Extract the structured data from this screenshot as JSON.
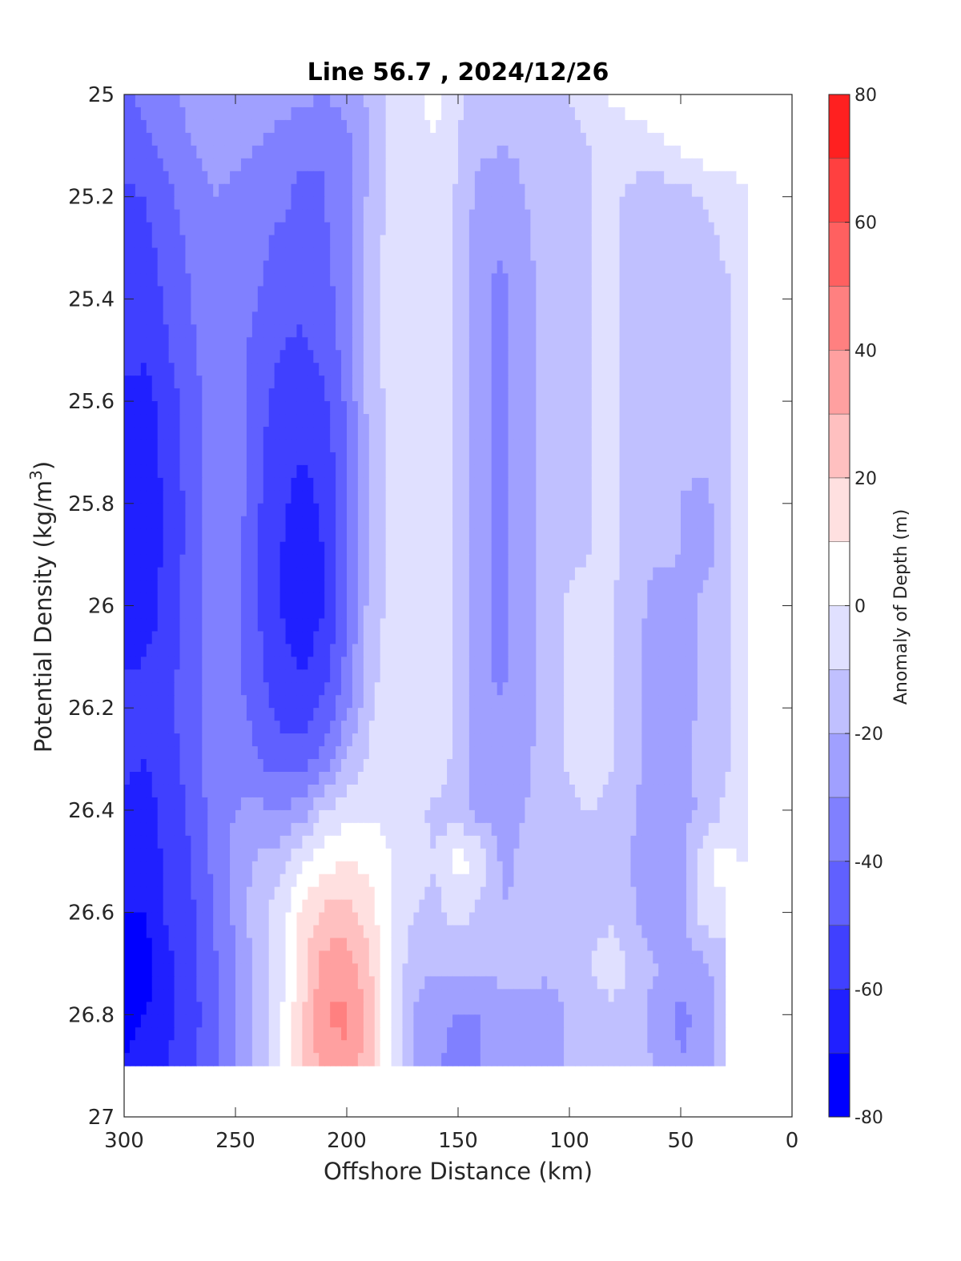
{
  "chart_data": {
    "type": "heatmap",
    "title": "Line 56.7 , 2024/12/26",
    "xlabel": "Offshore Distance (km)",
    "ylabel": "Potential Density (kg/m^3)",
    "ylabel_parts": {
      "main": "Potential Density (kg/m",
      "sup": "3",
      "end": ")"
    },
    "colorbar_label": "Anomaly of Depth (m)",
    "xlim": [
      300,
      0
    ],
    "ylim": [
      25,
      27
    ],
    "x_reversed": true,
    "y_reversed": true,
    "x_ticks": [
      "300",
      "250",
      "200",
      "150",
      "100",
      "50",
      "0"
    ],
    "y_ticks": [
      "25",
      "25.2",
      "25.4",
      "25.6",
      "25.8",
      "26",
      "26.2",
      "26.4",
      "26.6",
      "26.8",
      "27"
    ],
    "clim": [
      -80,
      80
    ],
    "colorbar_ticks": [
      "80",
      "60",
      "40",
      "20",
      "0",
      "-20",
      "-40",
      "-60",
      "-80"
    ],
    "contour_levels": [
      -80,
      -70,
      -60,
      -50,
      -40,
      -30,
      -20,
      -10,
      0,
      10,
      20,
      30,
      40,
      50,
      60,
      70,
      80
    ],
    "colors": [
      "#0000ff",
      "#2020ff",
      "#4040ff",
      "#6060ff",
      "#8080ff",
      "#a0a0ff",
      "#c0c0ff",
      "#e0e0ff",
      "#ffffff",
      "#ffe0e0",
      "#ffc0c0",
      "#ffa0a0",
      "#ff8080",
      "#ff6060",
      "#ff4040",
      "#ff2020",
      "#ff0000"
    ],
    "x": [
      300,
      290,
      280,
      270,
      260,
      250,
      240,
      230,
      220,
      210,
      200,
      190,
      180,
      170,
      160,
      150,
      140,
      130,
      120,
      110,
      100,
      90,
      80,
      70,
      60,
      50,
      40,
      30,
      20,
      10
    ],
    "y": [
      25.0,
      25.1,
      25.2,
      25.3,
      25.4,
      25.5,
      25.6,
      25.7,
      25.8,
      25.9,
      26.0,
      26.1,
      26.2,
      26.3,
      26.4,
      26.5,
      26.6,
      26.7,
      26.8,
      26.9
    ],
    "z": [
      [
        -42,
        -38,
        -32,
        -28,
        -24,
        -21,
        -20,
        -24,
        -28,
        -30,
        -26,
        -18,
        -8,
        -2,
        2,
        -8,
        -14,
        -16,
        -14,
        -12,
        -10,
        -6,
        2,
        4,
        6,
        6,
        4,
        10,
        6,
        null
      ],
      [
        -44,
        -42,
        -35,
        -30,
        -26,
        -28,
        -30,
        -35,
        -38,
        -40,
        -34,
        -20,
        -8,
        -2,
        0,
        -10,
        -18,
        -20,
        -18,
        -14,
        -12,
        -10,
        -6,
        -4,
        -2,
        2,
        6,
        4,
        2,
        null
      ],
      [
        -52,
        -50,
        -42,
        -35,
        -30,
        -32,
        -35,
        -38,
        -42,
        -40,
        -34,
        -18,
        -6,
        -2,
        0,
        -12,
        -24,
        -26,
        -20,
        -16,
        -12,
        -10,
        -8,
        -14,
        -16,
        -14,
        -10,
        -4,
        0,
        null
      ],
      [
        -55,
        -52,
        -46,
        -38,
        -32,
        -34,
        -38,
        -42,
        -45,
        -42,
        -34,
        -16,
        -6,
        -2,
        0,
        -14,
        -28,
        -30,
        -22,
        -16,
        -12,
        -10,
        -8,
        -16,
        -18,
        -18,
        -16,
        -8,
        -2,
        null
      ],
      [
        -56,
        -56,
        -48,
        -40,
        -33,
        -34,
        -40,
        -44,
        -48,
        -44,
        -34,
        -16,
        -6,
        -2,
        0,
        -14,
        -28,
        -32,
        -24,
        -16,
        -12,
        -10,
        -8,
        -16,
        -18,
        -18,
        -16,
        -14,
        -2,
        null
      ],
      [
        -58,
        -58,
        -50,
        -42,
        -34,
        -35,
        -44,
        -50,
        -52,
        -48,
        -35,
        -16,
        -6,
        -2,
        0,
        -14,
        -28,
        -32,
        -24,
        -16,
        -12,
        -10,
        -8,
        -16,
        -18,
        -18,
        -16,
        -14,
        -2,
        null
      ],
      [
        -62,
        -64,
        -54,
        -45,
        -34,
        -30,
        -46,
        -54,
        -56,
        -52,
        -38,
        -17,
        -6,
        -2,
        0,
        -14,
        -28,
        -32,
        -24,
        -16,
        -12,
        -10,
        -8,
        -16,
        -18,
        -18,
        -18,
        -14,
        -2,
        null
      ],
      [
        -65,
        -66,
        -56,
        -46,
        -36,
        -31,
        -48,
        -56,
        -60,
        -56,
        -40,
        -18,
        -6,
        -2,
        0,
        -14,
        -28,
        -32,
        -24,
        -16,
        -12,
        -10,
        -8,
        -16,
        -18,
        -18,
        -16,
        -14,
        -2,
        null
      ],
      [
        -68,
        -66,
        -57,
        -46,
        -36,
        -34,
        -49,
        -58,
        -64,
        -58,
        -42,
        -18,
        -6,
        -2,
        0,
        -14,
        -28,
        -32,
        -24,
        -16,
        -12,
        -10,
        -8,
        -16,
        -18,
        -20,
        -24,
        -14,
        -2,
        null
      ],
      [
        -69,
        -66,
        -57,
        -46,
        -36,
        -36,
        -50,
        -60,
        -66,
        -60,
        -42,
        -18,
        -6,
        -2,
        0,
        -14,
        -28,
        -32,
        -24,
        -16,
        -12,
        -10,
        -8,
        -16,
        -18,
        -20,
        -25,
        -14,
        -2,
        null
      ],
      [
        -68,
        -65,
        -56,
        -45,
        -36,
        -37,
        -50,
        -60,
        -66,
        -60,
        -40,
        -17,
        -6,
        -2,
        0,
        -14,
        -28,
        -32,
        -24,
        -16,
        -8,
        -6,
        -10,
        -16,
        -26,
        -24,
        -18,
        -14,
        -2,
        null
      ],
      [
        -62,
        -60,
        -54,
        -44,
        -36,
        -38,
        -48,
        -58,
        -62,
        -56,
        -38,
        -15,
        -6,
        -2,
        0,
        -14,
        -28,
        -32,
        -24,
        -16,
        -8,
        -4,
        -10,
        -18,
        -28,
        -26,
        -18,
        -14,
        -2,
        null
      ],
      [
        -55,
        -56,
        -52,
        -44,
        -35,
        -36,
        -45,
        -54,
        -56,
        -48,
        -32,
        -12,
        -4,
        -1,
        0,
        -14,
        -28,
        -30,
        -24,
        -16,
        -8,
        -4,
        -10,
        -18,
        -28,
        -24,
        -18,
        -12,
        -2,
        null
      ],
      [
        -58,
        -60,
        -54,
        -46,
        -35,
        -33,
        -39,
        -46,
        -46,
        -36,
        -20,
        -8,
        -4,
        -1,
        -2,
        -14,
        -26,
        -28,
        -22,
        -16,
        -8,
        -2,
        -10,
        -18,
        -26,
        -22,
        -18,
        -12,
        -2,
        null
      ],
      [
        -62,
        -64,
        -56,
        -48,
        -36,
        -30,
        -28,
        -30,
        -26,
        -10,
        -4,
        -2,
        -3,
        -8,
        -12,
        -16,
        -24,
        -26,
        -20,
        -16,
        -12,
        -10,
        -14,
        -20,
        -26,
        -24,
        -18,
        -8,
        -2,
        null
      ],
      [
        -66,
        -66,
        -57,
        -50,
        -38,
        -26,
        -18,
        -14,
        -2,
        6,
        10,
        8,
        0,
        -6,
        -10,
        4,
        -2,
        -22,
        -18,
        -16,
        -14,
        -12,
        -16,
        -22,
        -28,
        -26,
        -2,
        4,
        -2,
        null
      ],
      [
        -70,
        -70,
        -58,
        -52,
        -40,
        -28,
        -14,
        -6,
        12,
        22,
        24,
        14,
        0,
        -10,
        -12,
        -6,
        -14,
        -20,
        -18,
        -16,
        -14,
        -12,
        -14,
        -20,
        -28,
        -24,
        -4,
        -2,
        null,
        null
      ],
      [
        -78,
        -74,
        -62,
        -54,
        -42,
        -30,
        -16,
        -4,
        16,
        34,
        36,
        22,
        0,
        -16,
        -18,
        -16,
        -16,
        -16,
        -16,
        -16,
        -14,
        -10,
        -2,
        -14,
        -20,
        -24,
        -22,
        -14,
        null,
        null
      ],
      [
        -74,
        -70,
        -62,
        -54,
        -44,
        -32,
        -16,
        -2,
        18,
        40,
        42,
        26,
        0,
        -20,
        -28,
        -30,
        -30,
        -26,
        -24,
        -28,
        -18,
        -12,
        -14,
        -18,
        -24,
        -32,
        -28,
        -14,
        null,
        null
      ],
      [
        -70,
        -66,
        -60,
        -52,
        -44,
        -32,
        -16,
        -2,
        18,
        36,
        38,
        24,
        0,
        -20,
        -28,
        -34,
        -30,
        -26,
        -24,
        -26,
        -18,
        -14,
        -10,
        -16,
        -22,
        -30,
        -24,
        -14,
        null,
        null
      ]
    ]
  }
}
